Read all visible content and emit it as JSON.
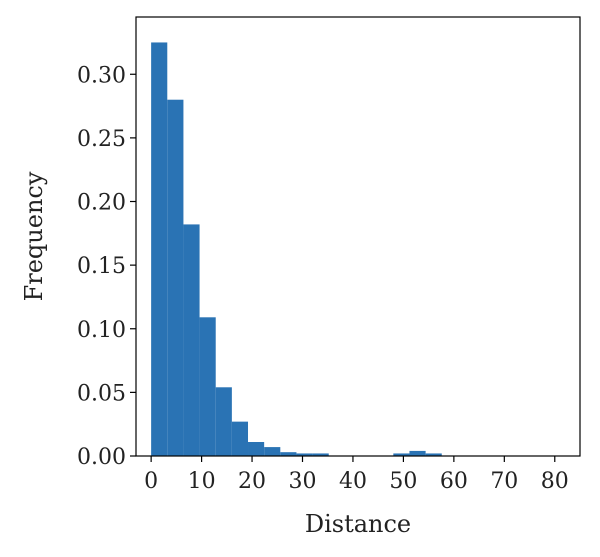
{
  "chart_data": {
    "type": "bar",
    "title": "",
    "xlabel": "Distance",
    "ylabel": "Frequency",
    "xlim": [
      -3,
      85
    ],
    "ylim": [
      0,
      0.345
    ],
    "xticks": [
      0,
      10,
      20,
      30,
      40,
      50,
      60,
      70,
      80
    ],
    "xtick_labels": [
      "0",
      "10",
      "20",
      "30",
      "40",
      "50",
      "60",
      "70",
      "80"
    ],
    "yticks": [
      0.0,
      0.05,
      0.1,
      0.15,
      0.2,
      0.25,
      0.3
    ],
    "ytick_labels": [
      "0.00",
      "0.05",
      "0.10",
      "0.15",
      "0.20",
      "0.25",
      "0.30"
    ],
    "bin_edges": [
      0,
      3.2,
      6.4,
      9.6,
      12.8,
      16.0,
      19.2,
      22.4,
      25.6,
      28.8,
      32.0,
      35.2,
      38.4,
      41.6,
      44.8,
      48.0,
      51.2,
      54.4,
      57.6,
      60.8,
      64.0,
      67.2,
      70.4,
      73.6,
      76.8,
      80.0,
      83.2
    ],
    "values": [
      0.325,
      0.28,
      0.182,
      0.109,
      0.054,
      0.027,
      0.011,
      0.007,
      0.003,
      0.002,
      0.002,
      0.0,
      0.0,
      0.0,
      0.0,
      0.002,
      0.004,
      0.002,
      0.0,
      0.0,
      0.0,
      0.0,
      0.0,
      0.0,
      0.0,
      0.0
    ],
    "bar_color": "#2a73b4",
    "grid": false,
    "legend": "none"
  }
}
